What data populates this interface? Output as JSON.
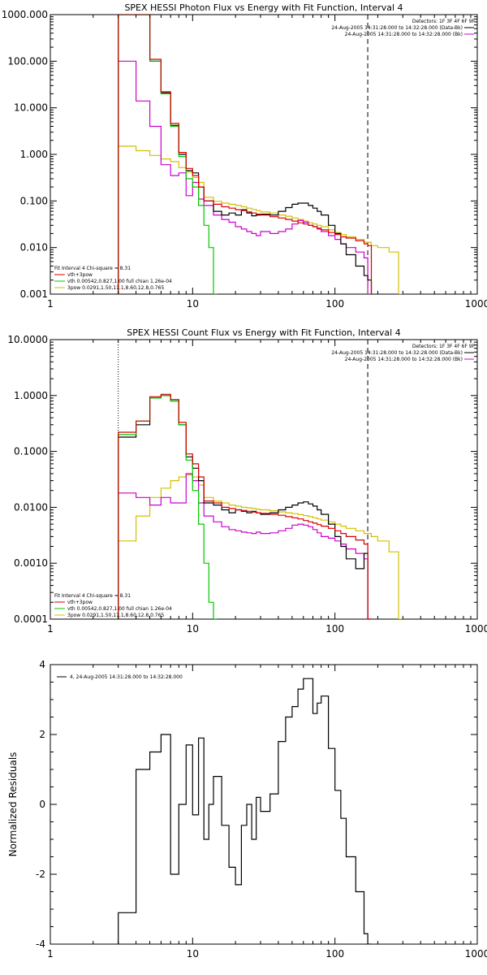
{
  "colors": {
    "bg": "#ffffff",
    "axes": "#000000",
    "data": "#000000",
    "total": "#d40000",
    "thermal": "#00c800",
    "powerlaw": "#d2c000",
    "background": "#cc00cc"
  },
  "chart_data": [
    {
      "id": "photon",
      "type": "line",
      "title": "SPEX HESSI Photon Flux vs Energy with Fit Function, Interval 4",
      "xlabel": "",
      "ylabel": "",
      "xscale": "log",
      "yscale": "log",
      "xlim": [
        1,
        1000
      ],
      "ylim": [
        0.001,
        1000
      ],
      "x_ticks": [
        "1",
        "10",
        "100",
        "1000"
      ],
      "y_ticks": [
        "0.001",
        "0.010",
        "0.100",
        "1.000",
        "10.000",
        "100.000",
        "1000.000"
      ],
      "info_lines": [
        "Detectors: 1F 3F 4F 6F 9F",
        "24-Aug-2005 14:31:28.000 to 14:32:28.000 (Data-Bk)",
        "24-Aug-2005 14:31:28.000 to 14:32:28.000 (Bk)"
      ],
      "legend_lines": [
        "Fit Interval 4   Chi-square = 8.31",
        "vth+3pow",
        "vth 0.00542,0.827,1.00  full chian 1.26e-04",
        "3pow 0.0291,1.50,11.1,8.60,12.8,0.765"
      ],
      "vlines": [
        {
          "x": 3,
          "style": "dotted"
        },
        {
          "x": 170,
          "style": "dashed"
        }
      ],
      "series": [
        {
          "role": "data",
          "name": "",
          "x": [
            3,
            4,
            5,
            6,
            7,
            8,
            9,
            10,
            11,
            12,
            14,
            16,
            18,
            20,
            22,
            24,
            26,
            28,
            30,
            35,
            40,
            45,
            50,
            55,
            60,
            65,
            70,
            75,
            80,
            90,
            100,
            110,
            120,
            140,
            160,
            170
          ],
          "values": [
            1000,
            1000,
            100,
            21,
            4.2,
            1.0,
            0.45,
            0.4,
            0.2,
            0.1,
            0.06,
            0.05,
            0.055,
            0.05,
            0.065,
            0.055,
            0.048,
            0.05,
            0.052,
            0.05,
            0.06,
            0.072,
            0.085,
            0.09,
            0.09,
            0.08,
            0.07,
            0.06,
            0.05,
            0.03,
            0.02,
            0.012,
            0.007,
            0.004,
            0.0025,
            0.002
          ]
        },
        {
          "role": "total",
          "name": "vth+3pow",
          "x": [
            3,
            4,
            5,
            6,
            7,
            8,
            9,
            10,
            11,
            12,
            14,
            16,
            18,
            20,
            22,
            24,
            26,
            28,
            30,
            35,
            40,
            45,
            50,
            55,
            60,
            65,
            70,
            75,
            80,
            90,
            100,
            110,
            120,
            140,
            160,
            170
          ],
          "values": [
            1000,
            1000,
            110,
            22,
            4.6,
            1.1,
            0.5,
            0.35,
            0.2,
            0.1,
            0.085,
            0.075,
            0.07,
            0.065,
            0.062,
            0.058,
            0.055,
            0.052,
            0.05,
            0.046,
            0.043,
            0.04,
            0.037,
            0.034,
            0.032,
            0.03,
            0.028,
            0.026,
            0.024,
            0.021,
            0.019,
            0.017,
            0.016,
            0.014,
            0.012,
            0.011
          ]
        },
        {
          "role": "thermal",
          "name": "vth",
          "x": [
            3,
            4,
            5,
            6,
            7,
            8,
            9,
            10,
            11,
            12,
            13,
            14
          ],
          "values": [
            1000,
            1000,
            100,
            20,
            4.0,
            0.9,
            0.3,
            0.2,
            0.08,
            0.03,
            0.01,
            0.001
          ]
        },
        {
          "role": "powerlaw",
          "name": "3pow",
          "x": [
            3,
            4,
            5,
            6,
            7,
            8,
            9,
            10,
            11,
            12,
            14,
            16,
            18,
            20,
            22,
            24,
            26,
            28,
            30,
            35,
            40,
            45,
            50,
            55,
            60,
            65,
            70,
            75,
            80,
            90,
            100,
            110,
            120,
            140,
            160,
            180,
            200,
            240,
            280
          ],
          "values": [
            1.5,
            1.2,
            0.95,
            0.8,
            0.7,
            0.52,
            0.42,
            0.32,
            0.25,
            0.12,
            0.098,
            0.09,
            0.085,
            0.08,
            0.075,
            0.07,
            0.066,
            0.062,
            0.058,
            0.055,
            0.05,
            0.047,
            0.043,
            0.04,
            0.037,
            0.034,
            0.032,
            0.03,
            0.028,
            0.024,
            0.021,
            0.019,
            0.017,
            0.015,
            0.013,
            0.011,
            0.01,
            0.008,
            0.001
          ]
        },
        {
          "role": "background",
          "name": "Bk",
          "x": [
            3,
            4,
            5,
            6,
            7,
            8,
            9,
            10,
            11,
            12,
            14,
            16,
            18,
            20,
            22,
            24,
            26,
            28,
            30,
            35,
            40,
            45,
            50,
            55,
            60,
            65,
            70,
            75,
            80,
            90,
            100,
            110,
            120,
            140,
            160,
            170
          ],
          "values": [
            100,
            14,
            4.0,
            0.6,
            0.35,
            0.4,
            0.13,
            0.25,
            0.11,
            0.08,
            0.05,
            0.04,
            0.035,
            0.028,
            0.025,
            0.022,
            0.02,
            0.018,
            0.022,
            0.02,
            0.022,
            0.025,
            0.032,
            0.038,
            0.035,
            0.03,
            0.028,
            0.025,
            0.022,
            0.018,
            0.015,
            0.012,
            0.01,
            0.008,
            0.006,
            0.001
          ]
        }
      ]
    },
    {
      "id": "count",
      "type": "line",
      "title": "SPEX HESSI Count Flux vs Energy with Fit Function, Interval 4",
      "xlabel": "",
      "ylabel": "",
      "xscale": "log",
      "yscale": "log",
      "xlim": [
        1,
        1000
      ],
      "ylim": [
        0.0001,
        10
      ],
      "x_ticks": [
        "1",
        "10",
        "100",
        "1000"
      ],
      "y_ticks": [
        "0.0001",
        "0.0010",
        "0.0100",
        "0.1000",
        "1.0000",
        "10.0000"
      ],
      "info_lines": [
        "Detectors: 1F 3F 4F 6F 9F",
        "24-Aug-2005 14:31:28.000 to 14:32:28.000 (Data-Bk)",
        "24-Aug-2005 14:31:28.000 to 14:32:28.000 (Bk)"
      ],
      "legend_lines": [
        "Fit Interval 4   Chi-square = 8.31",
        "vth+3pow",
        "vth 0.00542,0.827,1.00  full chian 1.26e-04",
        "3pow 0.0291,1.50,11.1,8.60,12.8,0.765"
      ],
      "vlines": [
        {
          "x": 3,
          "style": "dotted"
        },
        {
          "x": 170,
          "style": "dashed"
        }
      ],
      "series": [
        {
          "role": "data",
          "name": "",
          "x": [
            3,
            4,
            5,
            6,
            7,
            8,
            9,
            10,
            11,
            12,
            14,
            16,
            18,
            20,
            22,
            24,
            26,
            28,
            30,
            35,
            40,
            45,
            50,
            55,
            60,
            65,
            70,
            75,
            80,
            90,
            100,
            110,
            120,
            140,
            160,
            170
          ],
          "values": [
            0.18,
            0.3,
            0.9,
            1.0,
            0.8,
            0.3,
            0.08,
            0.05,
            0.03,
            0.012,
            0.011,
            0.009,
            0.008,
            0.009,
            0.0085,
            0.008,
            0.0085,
            0.008,
            0.0075,
            0.008,
            0.009,
            0.01,
            0.011,
            0.012,
            0.0125,
            0.0115,
            0.0105,
            0.009,
            0.0075,
            0.005,
            0.003,
            0.002,
            0.0012,
            0.0008,
            0.0015,
            0.0001
          ]
        },
        {
          "role": "total",
          "name": "vth+3pow",
          "x": [
            3,
            4,
            5,
            6,
            7,
            8,
            9,
            10,
            11,
            12,
            14,
            16,
            18,
            20,
            22,
            24,
            26,
            28,
            30,
            35,
            40,
            45,
            50,
            55,
            60,
            65,
            70,
            75,
            80,
            90,
            100,
            110,
            120,
            140,
            160,
            170
          ],
          "values": [
            0.22,
            0.35,
            0.95,
            1.05,
            0.85,
            0.33,
            0.09,
            0.06,
            0.035,
            0.013,
            0.012,
            0.01,
            0.0095,
            0.009,
            0.0088,
            0.0085,
            0.0082,
            0.008,
            0.0078,
            0.0075,
            0.0072,
            0.0068,
            0.0065,
            0.0062,
            0.0058,
            0.0055,
            0.0052,
            0.0049,
            0.0046,
            0.0042,
            0.0038,
            0.0034,
            0.003,
            0.0026,
            0.0022,
            0.0001
          ]
        },
        {
          "role": "thermal",
          "name": "vth",
          "x": [
            3,
            4,
            5,
            6,
            7,
            8,
            9,
            10,
            11,
            12,
            13,
            14
          ],
          "values": [
            0.2,
            0.35,
            0.9,
            1.0,
            0.8,
            0.3,
            0.07,
            0.02,
            0.005,
            0.001,
            0.0002,
            0.0001
          ]
        },
        {
          "role": "powerlaw",
          "name": "3pow",
          "x": [
            3,
            4,
            5,
            6,
            7,
            8,
            9,
            10,
            11,
            12,
            14,
            16,
            18,
            20,
            22,
            24,
            26,
            28,
            30,
            35,
            40,
            45,
            50,
            55,
            60,
            65,
            70,
            75,
            80,
            90,
            100,
            110,
            120,
            140,
            160,
            180,
            200,
            240,
            280
          ],
          "values": [
            0.0025,
            0.007,
            0.015,
            0.022,
            0.03,
            0.035,
            0.038,
            0.035,
            0.025,
            0.015,
            0.013,
            0.012,
            0.011,
            0.0105,
            0.01,
            0.0098,
            0.0095,
            0.0092,
            0.009,
            0.0087,
            0.0083,
            0.008,
            0.0077,
            0.0074,
            0.0071,
            0.0068,
            0.0065,
            0.0062,
            0.0059,
            0.0055,
            0.005,
            0.0046,
            0.0042,
            0.0038,
            0.0034,
            0.003,
            0.0025,
            0.0016,
            0.0001
          ]
        },
        {
          "role": "background",
          "name": "Bk",
          "x": [
            3,
            4,
            5,
            6,
            7,
            8,
            9,
            10,
            11,
            12,
            14,
            16,
            18,
            20,
            22,
            24,
            26,
            28,
            30,
            35,
            40,
            45,
            50,
            55,
            60,
            65,
            70,
            75,
            80,
            90,
            100,
            110,
            120,
            140,
            160,
            170
          ],
          "values": [
            0.018,
            0.015,
            0.011,
            0.015,
            0.012,
            0.012,
            0.04,
            0.03,
            0.012,
            0.007,
            0.0055,
            0.0045,
            0.004,
            0.0038,
            0.0036,
            0.0035,
            0.0034,
            0.0036,
            0.0034,
            0.0035,
            0.0038,
            0.0042,
            0.0048,
            0.005,
            0.0048,
            0.0045,
            0.004,
            0.0035,
            0.003,
            0.0028,
            0.0025,
            0.0022,
            0.0018,
            0.0015,
            0.0012,
            0.0001
          ]
        }
      ]
    },
    {
      "id": "residuals",
      "type": "line",
      "title": "",
      "xlabel": "",
      "ylabel": "Normalized Residuals",
      "xscale": "log",
      "yscale": "linear",
      "xlim": [
        1,
        1000
      ],
      "ylim": [
        -4,
        4
      ],
      "x_ticks": [
        "1",
        "10",
        "100",
        "1000"
      ],
      "y_ticks": [
        "-4",
        "-2",
        "0",
        "2",
        "4"
      ],
      "legend_lines": [
        "4, 24-Aug-2005 14:31:28.000 to 14:32:28.000"
      ],
      "series": [
        {
          "role": "data",
          "name": "",
          "x": [
            3,
            4,
            5,
            6,
            7,
            8,
            9,
            10,
            11,
            12,
            13,
            14,
            16,
            18,
            20,
            22,
            24,
            26,
            28,
            30,
            35,
            40,
            45,
            50,
            55,
            60,
            65,
            70,
            75,
            80,
            90,
            100,
            110,
            120,
            140,
            160,
            170
          ],
          "values": [
            -3.1,
            1.0,
            1.5,
            2.0,
            -2.0,
            0.0,
            1.7,
            -0.3,
            1.9,
            -1.0,
            0.0,
            0.8,
            -0.6,
            -1.8,
            -2.3,
            -0.6,
            0.0,
            -1.0,
            0.2,
            -0.2,
            0.3,
            1.8,
            2.5,
            2.8,
            3.3,
            3.6,
            3.6,
            2.6,
            2.9,
            3.1,
            1.6,
            0.4,
            -0.4,
            -1.5,
            -2.5,
            -3.7,
            -4.0
          ]
        }
      ]
    }
  ]
}
